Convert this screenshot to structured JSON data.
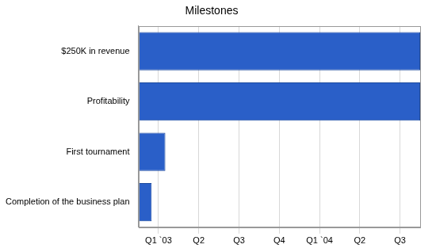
{
  "chart_data": {
    "type": "bar",
    "title": "Milestones",
    "orientation": "horizontal",
    "categories": [
      "$250K in revenue",
      "Profitability",
      "First tournament",
      "Completion of the business plan"
    ],
    "values": [
      [
        0,
        7
      ],
      [
        0,
        7
      ],
      [
        0,
        0.67
      ],
      [
        0,
        0.33
      ]
    ],
    "color": "#2a5fc8",
    "xlim": [
      0,
      7
    ],
    "xticks": [
      {
        "value": 0.5,
        "label": "Q1 `03"
      },
      {
        "value": 1.5,
        "label": "Q2"
      },
      {
        "value": 2.5,
        "label": "Q3"
      },
      {
        "value": 3.5,
        "label": "Q4"
      },
      {
        "value": 4.5,
        "label": "Q1 `04"
      },
      {
        "value": 5.5,
        "label": "Q2"
      },
      {
        "value": 6.5,
        "label": "Q3"
      }
    ],
    "grid": true
  }
}
